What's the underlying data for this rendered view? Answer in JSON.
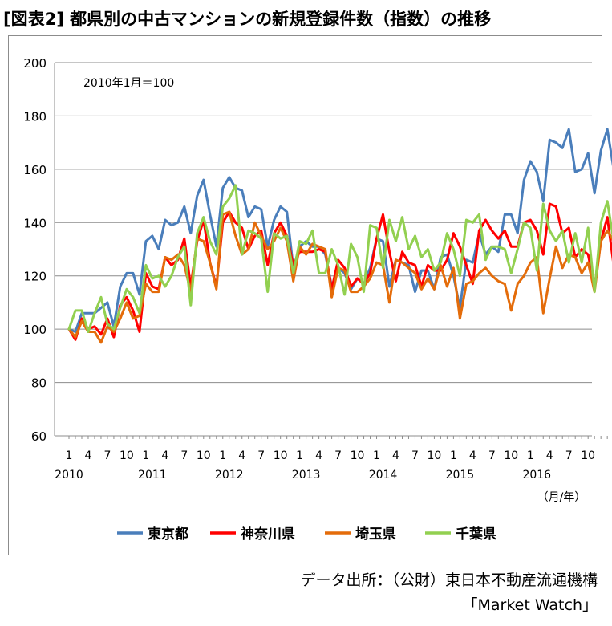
{
  "title": "[図表2] 都県別の中古マンションの新規登録件数（指数）の推移",
  "source_line1": "データ出所：（公財）東日本不動産流通機構",
  "source_line2": "「Market Watch」",
  "chart_data": {
    "type": "line",
    "note": "2010年1月＝100",
    "xlabel": "（月/年）",
    "ylabel": "",
    "ylim": [
      60,
      200
    ],
    "yticks": [
      60,
      80,
      100,
      120,
      140,
      160,
      180,
      200
    ],
    "grid": true,
    "legend": "bottom",
    "x_month_ticks": [
      {
        "i": 0,
        "label": "1"
      },
      {
        "i": 3,
        "label": "4"
      },
      {
        "i": 6,
        "label": "7"
      },
      {
        "i": 9,
        "label": "10"
      },
      {
        "i": 12,
        "label": "1"
      },
      {
        "i": 15,
        "label": "4"
      },
      {
        "i": 18,
        "label": "7"
      },
      {
        "i": 21,
        "label": "10"
      },
      {
        "i": 24,
        "label": "1"
      },
      {
        "i": 27,
        "label": "4"
      },
      {
        "i": 30,
        "label": "7"
      },
      {
        "i": 33,
        "label": "10"
      },
      {
        "i": 36,
        "label": "1"
      },
      {
        "i": 39,
        "label": "4"
      },
      {
        "i": 42,
        "label": "7"
      },
      {
        "i": 45,
        "label": "10"
      },
      {
        "i": 48,
        "label": "1"
      },
      {
        "i": 51,
        "label": "4"
      },
      {
        "i": 54,
        "label": "7"
      },
      {
        "i": 57,
        "label": "10"
      },
      {
        "i": 60,
        "label": "1"
      },
      {
        "i": 63,
        "label": "4"
      },
      {
        "i": 66,
        "label": "7"
      },
      {
        "i": 69,
        "label": "10"
      },
      {
        "i": 72,
        "label": "1"
      },
      {
        "i": 75,
        "label": "4"
      },
      {
        "i": 78,
        "label": "7"
      },
      {
        "i": 81,
        "label": "10"
      }
    ],
    "x_year_ticks": [
      {
        "i": 0,
        "label": "2010"
      },
      {
        "i": 13,
        "label": "2011"
      },
      {
        "i": 25,
        "label": "2012"
      },
      {
        "i": 37,
        "label": "2013"
      },
      {
        "i": 49,
        "label": "2014"
      },
      {
        "i": 61,
        "label": "2015"
      },
      {
        "i": 73,
        "label": "2016"
      }
    ],
    "series": [
      {
        "name": "東京都",
        "color": "#4a7ebb",
        "values": [
          100,
          99,
          106,
          106,
          106,
          108,
          110,
          101,
          116,
          121,
          121,
          113,
          133,
          135,
          130,
          141,
          139,
          140,
          146,
          136,
          150,
          156,
          143,
          131,
          153,
          157,
          153,
          152,
          142,
          146,
          145,
          131,
          141,
          146,
          144,
          123,
          131,
          133,
          131,
          131,
          128,
          116,
          123,
          121,
          115,
          119,
          117,
          123,
          134,
          133,
          116,
          126,
          125,
          124,
          114,
          122,
          122,
          115,
          127,
          128,
          120,
          108,
          126,
          125,
          136,
          128,
          131,
          129,
          143,
          143,
          136,
          156,
          163,
          159,
          148,
          171,
          170,
          168,
          175,
          159,
          160,
          166,
          151,
          167,
          175,
          160,
          151
        ]
      },
      {
        "name": "神奈川県",
        "color": "#ff0000",
        "values": [
          100,
          96,
          104,
          100,
          101,
          98,
          104,
          97,
          109,
          112,
          107,
          99,
          121,
          116,
          115,
          127,
          124,
          126,
          134,
          116,
          133,
          141,
          125,
          116,
          140,
          144,
          140,
          138,
          130,
          135,
          137,
          124,
          136,
          140,
          135,
          124,
          129,
          129,
          129,
          130,
          129,
          115,
          126,
          123,
          116,
          119,
          117,
          121,
          134,
          143,
          129,
          118,
          129,
          125,
          124,
          116,
          124,
          122,
          122,
          126,
          136,
          131,
          124,
          117,
          137,
          141,
          137,
          134,
          137,
          131,
          131,
          140,
          141,
          137,
          128,
          147,
          146,
          136,
          138,
          127,
          130,
          128,
          116,
          133,
          142,
          124,
          123
        ]
      },
      {
        "name": "埼玉県",
        "color": "#e46c0a",
        "values": [
          100,
          97,
          103,
          99,
          99,
          95,
          101,
          99,
          104,
          110,
          104,
          105,
          117,
          114,
          114,
          127,
          126,
          128,
          124,
          114,
          134,
          133,
          125,
          115,
          143,
          144,
          135,
          128,
          130,
          140,
          135,
          130,
          133,
          138,
          133,
          118,
          131,
          128,
          132,
          131,
          130,
          112,
          123,
          122,
          114,
          114,
          116,
          119,
          125,
          124,
          110,
          126,
          125,
          123,
          121,
          115,
          119,
          115,
          124,
          116,
          123,
          104,
          117,
          118,
          121,
          123,
          120,
          118,
          117,
          107,
          117,
          120,
          125,
          127,
          106,
          119,
          131,
          123,
          128,
          127,
          121,
          125,
          114,
          133,
          137,
          133,
          127
        ]
      },
      {
        "name": "千葉県",
        "color": "#92d050",
        "values": [
          100,
          107,
          107,
          99,
          106,
          112,
          102,
          100,
          108,
          115,
          112,
          106,
          124,
          119,
          120,
          116,
          120,
          127,
          131,
          109,
          136,
          142,
          133,
          128,
          146,
          149,
          154,
          128,
          137,
          136,
          134,
          114,
          136,
          134,
          135,
          121,
          133,
          132,
          137,
          121,
          121,
          130,
          124,
          113,
          132,
          127,
          114,
          139,
          138,
          123,
          141,
          133,
          142,
          130,
          135,
          127,
          130,
          122,
          125,
          136,
          130,
          120,
          141,
          140,
          143,
          126,
          131,
          131,
          130,
          121,
          130,
          140,
          138,
          122,
          147,
          137,
          133,
          137,
          125,
          136,
          125,
          138,
          114,
          140,
          148,
          133,
          125
        ]
      }
    ]
  }
}
